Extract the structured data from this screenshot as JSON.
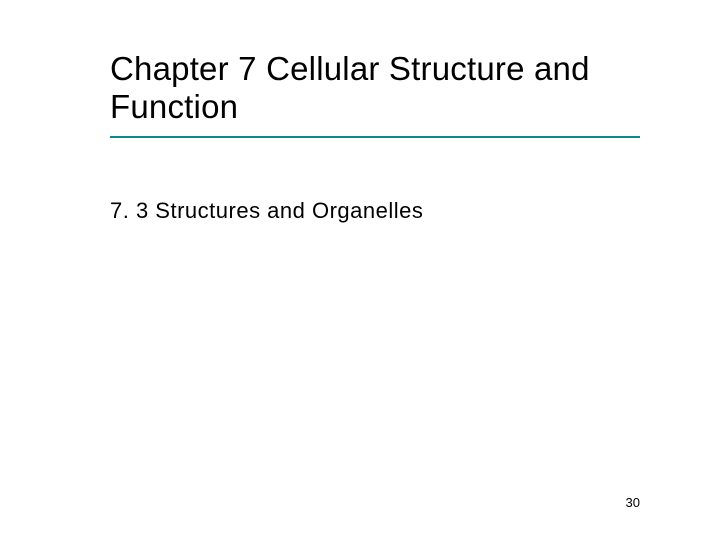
{
  "slide": {
    "title": "Chapter 7 Cellular Structure and Function",
    "subtitle": "7. 3 Structures and Organelles",
    "page_number": "30",
    "divider_color": "#0b8a87",
    "background_color": "#ffffff",
    "title_fontsize": 33,
    "subtitle_fontsize": 22,
    "title_font": "Arial",
    "subtitle_font": "Verdana"
  }
}
